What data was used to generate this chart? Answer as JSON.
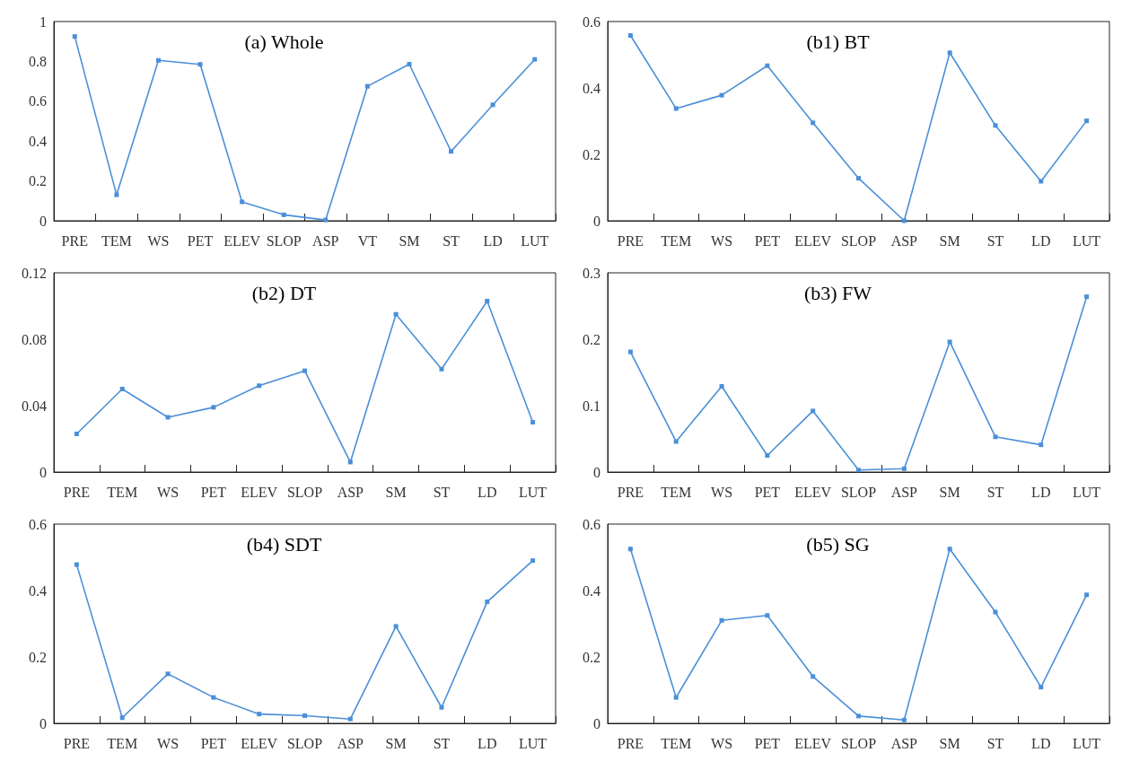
{
  "chart_data": [
    {
      "type": "line",
      "title": "(a) Whole",
      "categories": [
        "PRE",
        "TEM",
        "WS",
        "PET",
        "ELEV",
        "SLOP",
        "ASP",
        "VT",
        "SM",
        "ST",
        "LD",
        "LUT"
      ],
      "values": [
        0.925,
        0.13,
        0.805,
        0.785,
        0.095,
        0.03,
        0.004,
        0.675,
        0.786,
        0.348,
        0.582,
        0.81
      ],
      "color": "#4a8fd8",
      "marker": "square",
      "ylim": [
        0,
        1
      ],
      "yticks": [
        0,
        0.2,
        0.4,
        0.6,
        0.8,
        1
      ],
      "grid": false
    },
    {
      "type": "line",
      "title": "(b1) BT",
      "categories": [
        "PRE",
        "TEM",
        "WS",
        "PET",
        "ELEV",
        "SLOP",
        "ASP",
        "SM",
        "ST",
        "LD",
        "LUT"
      ],
      "values": [
        0.558,
        0.338,
        0.378,
        0.467,
        0.295,
        0.128,
        0,
        0.506,
        0.287,
        0.119,
        0.301
      ],
      "color": "#4a8fd8",
      "marker": "square",
      "ylim": [
        0,
        0.6
      ],
      "yticks": [
        0,
        0.2,
        0.4,
        0.6
      ],
      "grid": false
    },
    {
      "type": "line",
      "title": "(b2) DT",
      "categories": [
        "PRE",
        "TEM",
        "WS",
        "PET",
        "ELEV",
        "SLOP",
        "ASP",
        "SM",
        "ST",
        "LD",
        "LUT"
      ],
      "values": [
        0.023,
        0.05,
        0.033,
        0.039,
        0.052,
        0.061,
        0.006,
        0.095,
        0.062,
        0.103,
        0.03
      ],
      "color": "#4a8fd8",
      "marker": "square",
      "ylim": [
        0,
        0.12
      ],
      "yticks": [
        0,
        0.04,
        0.08,
        0.12
      ],
      "grid": false
    },
    {
      "type": "line",
      "title": "(b3) FW",
      "categories": [
        "PRE",
        "TEM",
        "WS",
        "PET",
        "ELEV",
        "SLOP",
        "ASP",
        "SM",
        "ST",
        "LD",
        "LUT"
      ],
      "values": [
        0.181,
        0.046,
        0.129,
        0.025,
        0.092,
        0.003,
        0.005,
        0.196,
        0.053,
        0.041,
        0.264
      ],
      "color": "#4a8fd8",
      "marker": "square",
      "ylim": [
        0,
        0.3
      ],
      "yticks": [
        0,
        0.1,
        0.2,
        0.3
      ],
      "grid": false
    },
    {
      "type": "line",
      "title": "(b4) SDT",
      "categories": [
        "PRE",
        "TEM",
        "WS",
        "PET",
        "ELEV",
        "SLOP",
        "ASP",
        "SM",
        "ST",
        "LD",
        "LUT"
      ],
      "values": [
        0.478,
        0.017,
        0.149,
        0.078,
        0.028,
        0.023,
        0.013,
        0.292,
        0.048,
        0.366,
        0.49
      ],
      "color": "#4a8fd8",
      "marker": "square",
      "ylim": [
        0,
        0.6
      ],
      "yticks": [
        0,
        0.2,
        0.4,
        0.6
      ],
      "grid": false
    },
    {
      "type": "line",
      "title": "(b5) SG",
      "categories": [
        "PRE",
        "TEM",
        "WS",
        "PET",
        "ELEV",
        "SLOP",
        "ASP",
        "SM",
        "ST",
        "LD",
        "LUT"
      ],
      "values": [
        0.525,
        0.078,
        0.31,
        0.325,
        0.141,
        0.022,
        0.01,
        0.525,
        0.335,
        0.109,
        0.387
      ],
      "color": "#4a8fd8",
      "marker": "square",
      "ylim": [
        0,
        0.6
      ],
      "yticks": [
        0,
        0.2,
        0.4,
        0.6
      ],
      "grid": false
    }
  ]
}
